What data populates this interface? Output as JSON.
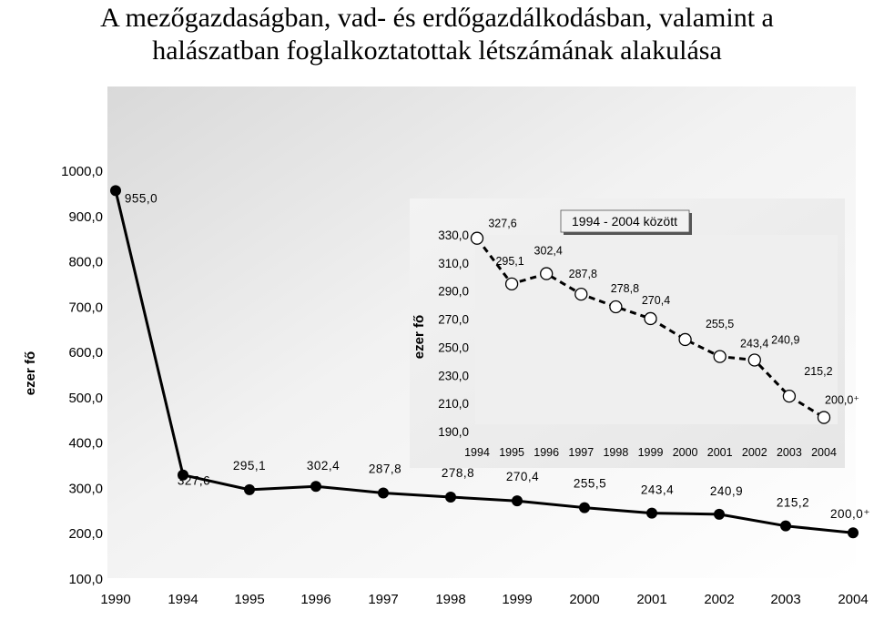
{
  "title_line1": "A mezőgazdaságban, vad- és erdőgazdálkodásban, valamint a",
  "title_line2": "halászatban foglalkoztatottak létszámának alakulása",
  "chart_data": [
    {
      "type": "line",
      "ylabel": "ezer fő",
      "ylim": [
        100,
        1000
      ],
      "y_ticks": [
        "1000,0",
        "900,0",
        "800,0",
        "700,0",
        "600,0",
        "500,0",
        "400,0",
        "300,0",
        "200,0",
        "100,0"
      ],
      "categories": [
        "1990",
        "1994",
        "1995",
        "1996",
        "1997",
        "1998",
        "1999",
        "2000",
        "2001",
        "2002",
        "2003",
        "2004"
      ],
      "values": [
        955.0,
        327.6,
        295.1,
        302.4,
        287.8,
        278.8,
        270.4,
        255.5,
        243.4,
        240.9,
        215.2,
        200.0
      ],
      "data_labels": [
        "955,0",
        "327,6",
        "295,1",
        "302,4",
        "287,8",
        "278,8",
        "270,4",
        "255,5",
        "243,4",
        "240,9",
        "215,2",
        "200,0⁺"
      ],
      "grid": false
    },
    {
      "type": "line",
      "title": "1994 - 2004 között",
      "ylabel": "ezer fő",
      "ylim": [
        190,
        330
      ],
      "y_ticks": [
        "330,0",
        "310,0",
        "290,0",
        "270,0",
        "250,0",
        "230,0",
        "210,0",
        "190,0"
      ],
      "categories": [
        "1994",
        "1995",
        "1996",
        "1997",
        "1998",
        "1999",
        "2000",
        "2001",
        "2002",
        "2003",
        "2004"
      ],
      "values": [
        327.6,
        295.1,
        302.4,
        287.8,
        278.8,
        270.4,
        255.5,
        243.4,
        240.9,
        215.2,
        200.0
      ],
      "data_labels": [
        "327,6",
        "295,1",
        "302,4",
        "287,8",
        "278,8",
        "270,4",
        "255,5",
        "243,4",
        "240,9",
        "215,2",
        "200,0⁺"
      ],
      "grid": false
    }
  ]
}
